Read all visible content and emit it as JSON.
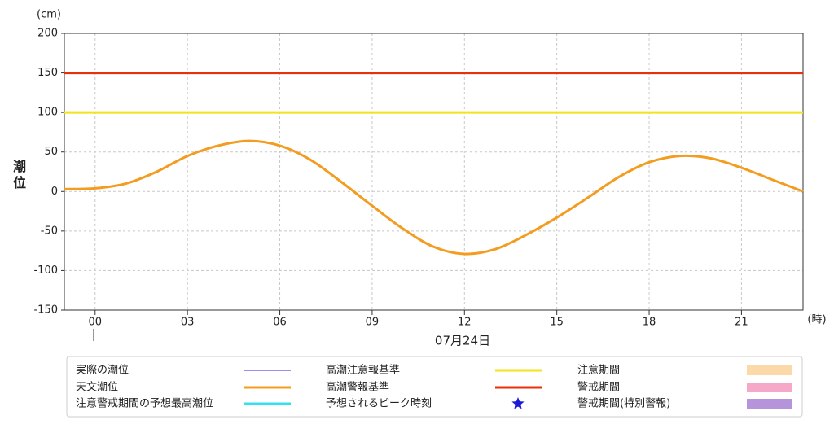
{
  "chart_data": {
    "type": "line",
    "y_label": "潮位",
    "y_unit": "(cm)",
    "x_unit": "(時)",
    "date": "07月24日",
    "x": [
      -1,
      0,
      1,
      2,
      3,
      4,
      5,
      6,
      7,
      8,
      9,
      10,
      11,
      12,
      13,
      14,
      15,
      16,
      17,
      18,
      19,
      20,
      21,
      22,
      23
    ],
    "series": [
      {
        "color": "#f39c1f",
        "values": [
          3,
          4,
          10,
          25,
          45,
          58,
          64,
          58,
          40,
          12,
          -18,
          -47,
          -70,
          -79,
          -73,
          -55,
          -33,
          -8,
          18,
          37,
          45,
          42,
          30,
          15,
          0
        ]
      }
    ],
    "reference_lines": [
      {
        "color": "#f2e41c",
        "value": 100
      },
      {
        "color": "#e8300a",
        "value": 150
      }
    ],
    "xlim": [
      -1,
      23
    ],
    "xticks": [
      {
        "value": 0,
        "label": "00"
      },
      {
        "value": 3,
        "label": "03"
      },
      {
        "value": 6,
        "label": "06"
      },
      {
        "value": 9,
        "label": "09"
      },
      {
        "value": 12,
        "label": "12"
      },
      {
        "value": 15,
        "label": "15"
      },
      {
        "value": 18,
        "label": "18"
      },
      {
        "value": 21,
        "label": "21"
      }
    ],
    "ylim": [
      -150,
      200
    ],
    "yticks": [
      -150,
      -100,
      -50,
      0,
      50,
      100,
      150,
      200
    ],
    "grid": true,
    "legend": [
      {
        "name": "実際の潮位",
        "color": "#7b68ee",
        "marker": "line"
      },
      {
        "name": "天文潮位",
        "color": "#f39c1f",
        "marker": "thick-line"
      },
      {
        "name": "注意警戒期間の予想最高潮位",
        "color": "#33e0f0",
        "marker": "thick-line"
      },
      {
        "name": "高潮注意報基準",
        "color": "#f2e41c",
        "marker": "thick-line"
      },
      {
        "name": "高潮警報基準",
        "color": "#e8300a",
        "marker": "thick-line"
      },
      {
        "name": "予想されるピーク時刻",
        "color": "#1a1ad8",
        "marker": "star"
      },
      {
        "name": "注意期間",
        "color": "#fbd9a8",
        "marker": "box"
      },
      {
        "name": "警戒期間",
        "color": "#f7a8c8",
        "marker": "box"
      },
      {
        "name": "警戒期間(特別警報)",
        "color": "#b594dc",
        "marker": "box"
      }
    ]
  }
}
